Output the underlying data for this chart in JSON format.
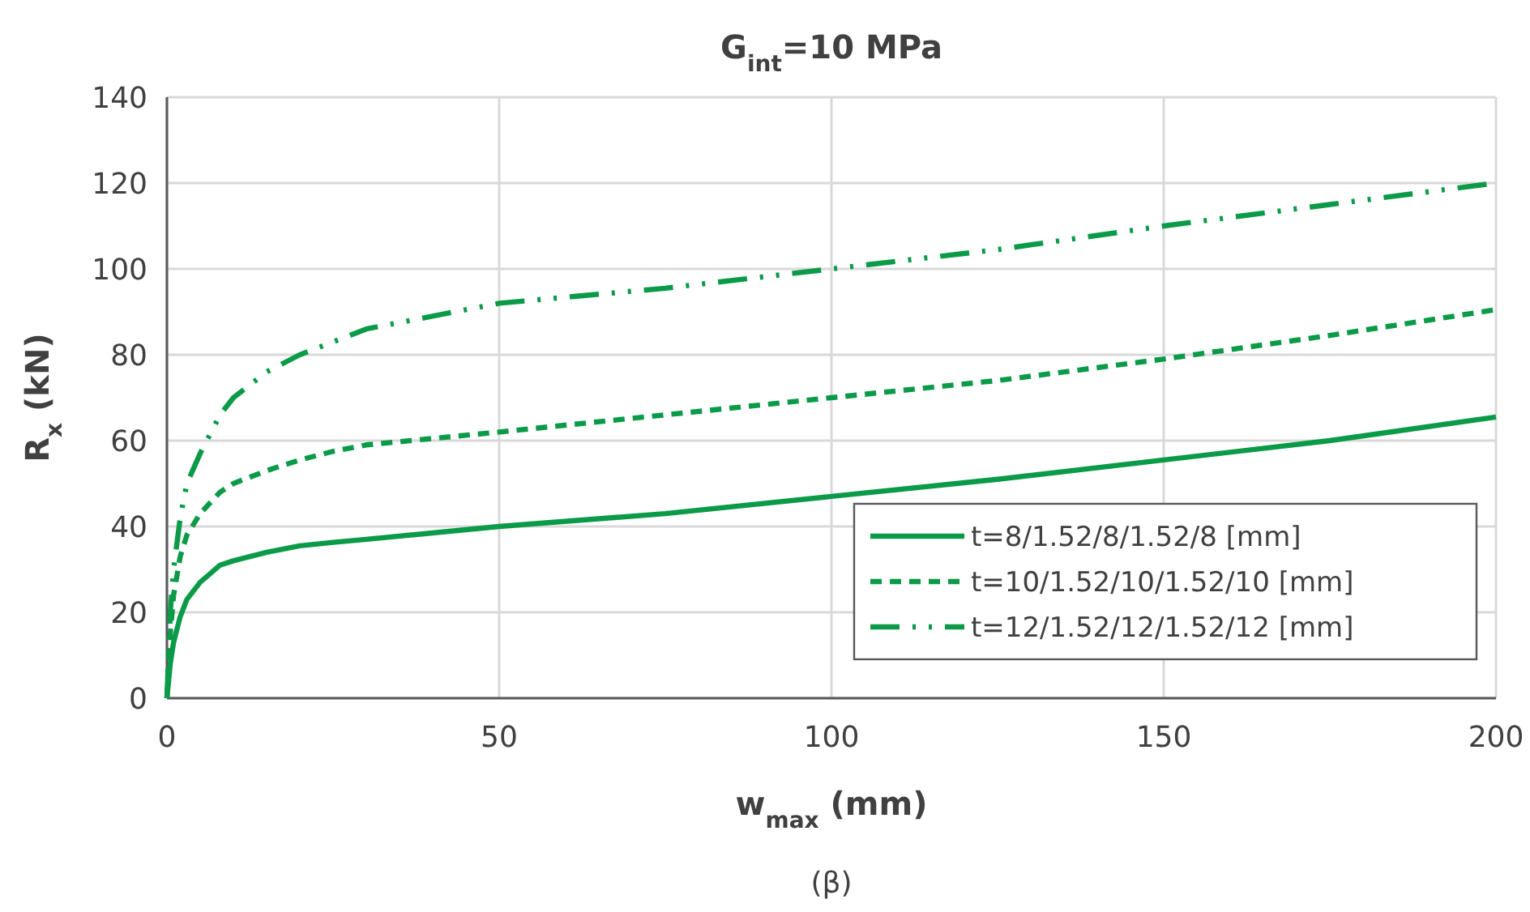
{
  "chart_data": {
    "type": "line",
    "title": "G$_{int}$=10 MPa",
    "xlabel": "w$_{max}$ (mm)",
    "ylabel": "R$_{x}$ (kN)",
    "annotations": [
      "(β)"
    ],
    "xlim": [
      0,
      200
    ],
    "xticks": [
      0,
      50,
      100,
      150,
      200
    ],
    "ylim": [
      0,
      140
    ],
    "yticks": [
      0,
      20,
      40,
      60,
      80,
      100,
      120,
      140
    ],
    "grid": true,
    "legend": "bottom right",
    "marker": "none",
    "x": [
      0,
      0.5,
      1,
      2,
      3,
      5,
      8,
      10,
      15,
      20,
      25,
      30,
      50,
      75,
      100,
      125,
      150,
      175,
      200
    ],
    "series": [
      {
        "name": "t=8/1.52/8/1.52/8 [mm]",
        "color": "#0a9a48",
        "line_style": "solid",
        "values": [
          0,
          8,
          13,
          19,
          23,
          27,
          31,
          32,
          34,
          35.5,
          36.3,
          37,
          40,
          43,
          47,
          51,
          55.5,
          60,
          65.5
        ]
      },
      {
        "name": "t=10/1.52/10/1.52/10 [mm]",
        "color": "#0a9a48",
        "line_style": "dashed",
        "values": [
          0,
          15,
          24,
          33,
          38,
          43,
          48,
          50,
          53,
          55.5,
          57.5,
          59,
          62,
          66,
          70,
          74,
          79,
          84.5,
          90.5
        ]
      },
      {
        "name": "t=12/1.52/12/1.52/12 [mm]",
        "color": "#0a9a48",
        "line_style": "dashdot",
        "values": [
          0,
          20,
          30,
          42,
          50,
          57,
          66,
          70,
          76,
          80,
          83,
          86,
          92,
          95.5,
          100,
          104.5,
          110,
          115,
          120
        ]
      }
    ]
  }
}
